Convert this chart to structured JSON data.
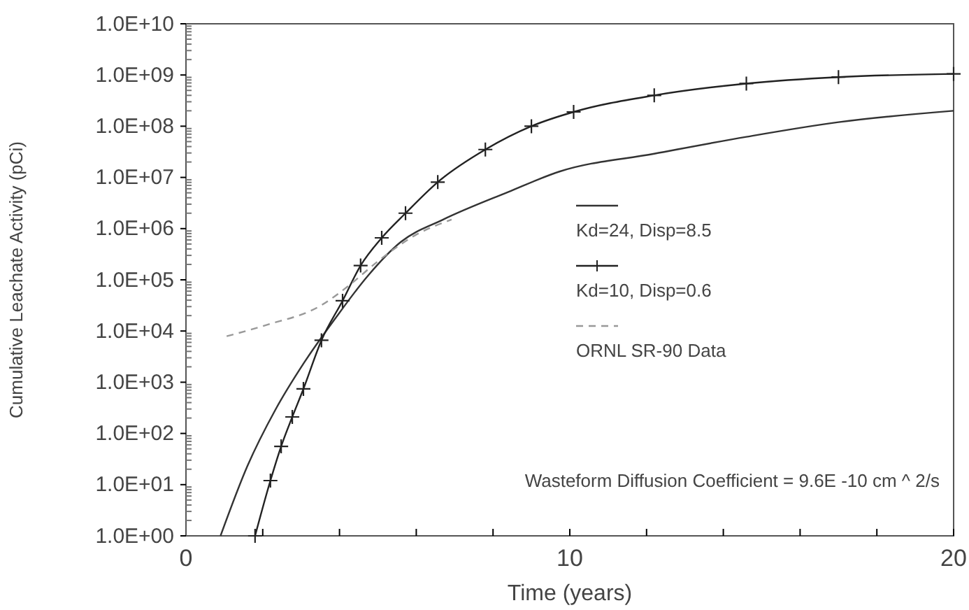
{
  "chart_data": {
    "type": "line",
    "xlabel": "Time (years)",
    "ylabel": "Cumulative Leachate Activity (pCi)",
    "log": "y",
    "xlim": [
      0,
      20
    ],
    "ylim": [
      1,
      10000000000.0
    ],
    "xticks": [
      0,
      {
        "value": 2,
        "label": null
      },
      {
        "value": 4,
        "label": null
      },
      {
        "value": 6,
        "label": null
      },
      {
        "value": 8,
        "label": null
      },
      10,
      {
        "value": 12,
        "label": null
      },
      {
        "value": 14,
        "label": null
      },
      {
        "value": 16,
        "label": null
      },
      {
        "value": 18,
        "label": null
      },
      20
    ],
    "yticks": [
      {
        "value": 1,
        "label": "1.0E+00"
      },
      {
        "value": 10,
        "label": "1.0E+01"
      },
      {
        "value": 100,
        "label": "1.0E+02"
      },
      {
        "value": 1000,
        "label": "1.0E+03"
      },
      {
        "value": 10000,
        "label": "1.0E+04"
      },
      {
        "value": 100000,
        "label": "1.0E+05"
      },
      {
        "value": 1000000,
        "label": "1.0E+06"
      },
      {
        "value": 10000000,
        "label": "1.0E+07"
      },
      {
        "value": 100000000,
        "label": "1.0E+08"
      },
      {
        "value": 1000000000,
        "label": "1.0E+09"
      },
      {
        "value": 10000000000,
        "label": "1.0E+10"
      }
    ],
    "grid": false,
    "legend": "right",
    "series": [
      {
        "name": "Kd=24, Disp=8.5",
        "color": "#333333",
        "marker": "none",
        "line_style": "solid",
        "x": [
          0.9,
          1.6,
          2.33,
          3.06,
          3.9,
          4.74,
          5.6,
          6.7,
          8.4,
          9.73,
          12.2,
          14.6,
          17.0,
          20
        ],
        "values": [
          1,
          23,
          290,
          2300,
          18000,
          120000,
          550000,
          1500000,
          5200000,
          13000000,
          29000000,
          62000000,
          120000000,
          200000000
        ]
      },
      {
        "name": "Kd=10, Disp=0.6",
        "color": "#222222",
        "marker": "cross",
        "line_style": "solid",
        "x": [
          1.8,
          2.2,
          2.48,
          2.77,
          3.06,
          3.53,
          4.08,
          4.55,
          5.1,
          5.72,
          6.56,
          7.8,
          9.0,
          10.1,
          12.2,
          14.6,
          17.0,
          20
        ],
        "values": [
          1,
          12,
          56,
          210,
          740,
          6600,
          39000,
          190000,
          660000,
          2000000,
          8100000,
          35000000,
          100000000,
          190000000,
          400000000,
          680000000,
          910000000,
          1050000000
        ]
      },
      {
        "name": "ORNL SR-90 Data",
        "color": "#999999",
        "marker": "none",
        "line_style": "dashed",
        "x": [
          1.06,
          2.08,
          3.53,
          4.26,
          5.0,
          5.97,
          6.92
        ],
        "values": [
          7900,
          13000,
          32000,
          79000,
          230000,
          740000,
          1500000
        ]
      }
    ],
    "annotations": [
      "Wasteform Diffusion Coefficient = 9.6E -10 cm ^ 2/s"
    ]
  }
}
